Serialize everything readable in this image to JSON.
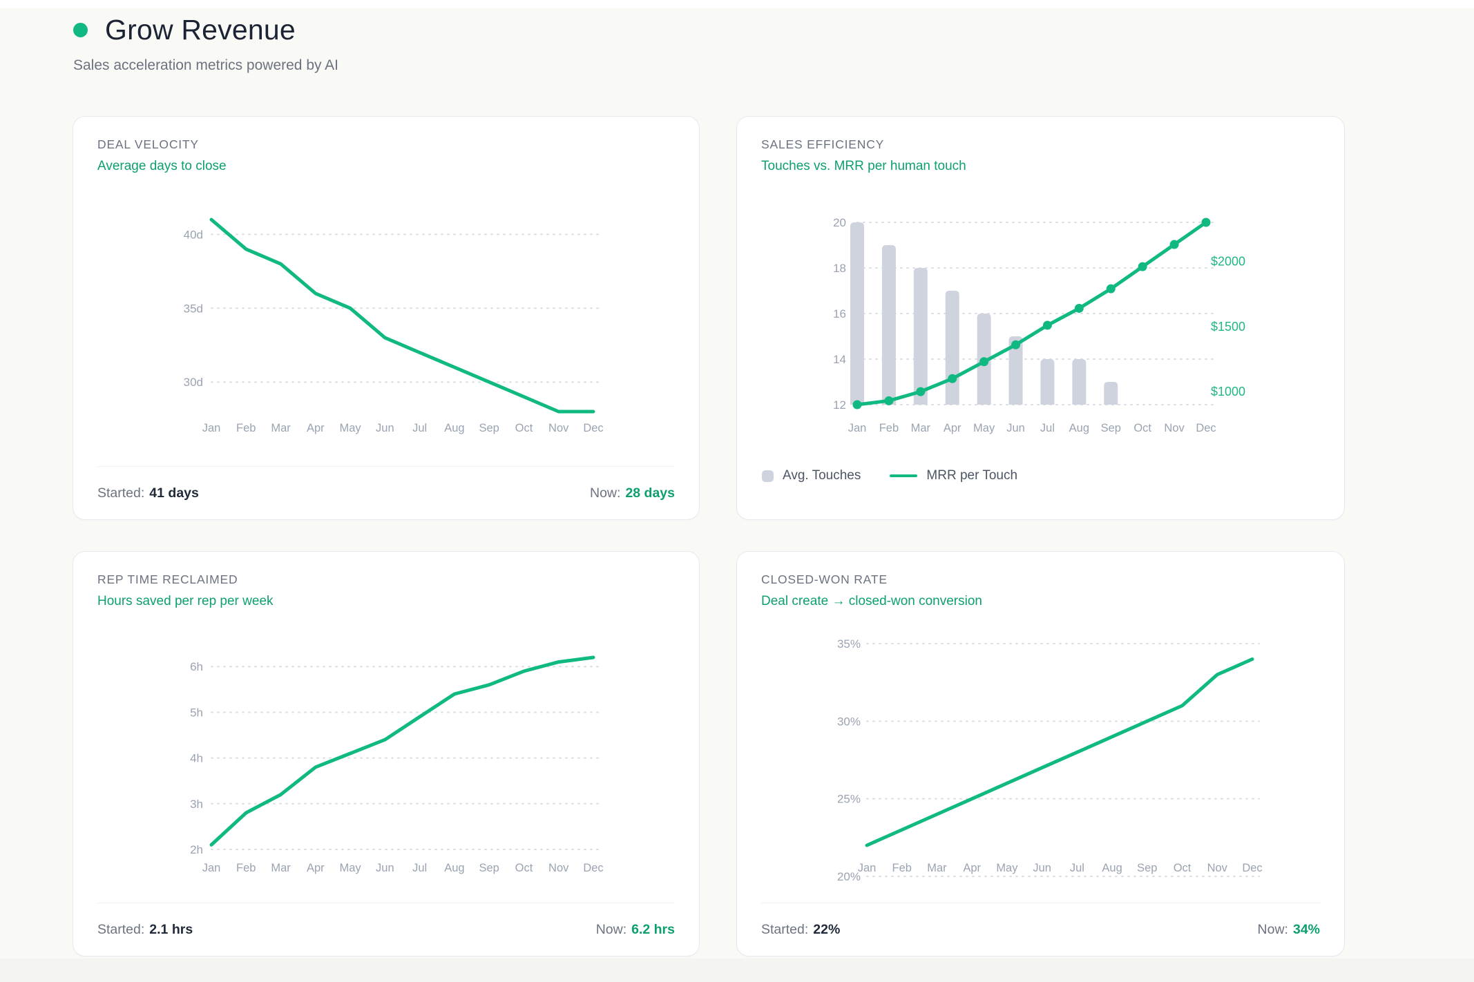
{
  "page": {
    "title": "Grow Revenue",
    "subtitle": "Sales acceleration metrics powered by AI"
  },
  "colors": {
    "accent_green": "#10b981",
    "text_green": "#0d9f6e",
    "right_axis_green": "#22b586",
    "bar_fill": "#ced3dd",
    "gridline": "#dadde3",
    "axis_text": "#9aa3b2",
    "dark_value_text": "#1f2937",
    "muted_text": "#6b7280",
    "card_background": "#ffffff",
    "page_background": "#f9f9f6"
  },
  "cards": [
    {
      "title": "DEAL VELOCITY",
      "subtitle": "Average days to close",
      "footer": {
        "started_label": "Started:",
        "started_value": "41 days",
        "now_label": "Now:",
        "now_value": "28 days"
      }
    },
    {
      "title": "SALES EFFICIENCY",
      "subtitle": "Touches vs. MRR per human touch",
      "legend": [
        {
          "label": "Avg. Touches",
          "swatch": "bar"
        },
        {
          "label": "MRR per Touch",
          "swatch": "line"
        }
      ]
    },
    {
      "title": "REP TIME RECLAIMED",
      "subtitle": "Hours saved per rep per week",
      "footer": {
        "started_label": "Started:",
        "started_value": "2.1 hrs",
        "now_label": "Now:",
        "now_value": "6.2 hrs"
      }
    },
    {
      "title": "CLOSED-WON RATE",
      "subtitle": "Deal create → closed-won conversion",
      "footer": {
        "started_label": "Started:",
        "started_value": "22%",
        "now_label": "Now:",
        "now_value": "34%"
      }
    }
  ],
  "chart_data": [
    {
      "type": "line",
      "title": "Deal Velocity — Average days to close",
      "x": [
        "Jan",
        "Feb",
        "Mar",
        "Apr",
        "May",
        "Jun",
        "Jul",
        "Aug",
        "Sep",
        "Oct",
        "Nov",
        "Dec"
      ],
      "series": [
        {
          "name": "Avg days to close",
          "values": [
            41,
            39,
            38,
            36,
            35,
            33,
            32,
            31,
            30,
            29,
            28,
            28
          ]
        }
      ],
      "ylim": [
        28,
        41
      ],
      "yticks": [
        {
          "v": 30,
          "label": "30d"
        },
        {
          "v": 35,
          "label": "35d"
        },
        {
          "v": 40,
          "label": "40d"
        }
      ],
      "grid": "dotted",
      "legend_position": "none"
    },
    {
      "type": "bar+line",
      "title": "Sales Efficiency — Touches vs. MRR per human touch",
      "x": [
        "Jan",
        "Feb",
        "Mar",
        "Apr",
        "May",
        "Jun",
        "Jul",
        "Aug",
        "Sep",
        "Oct",
        "Nov",
        "Dec"
      ],
      "series": [
        {
          "name": "Avg. Touches",
          "type": "bar",
          "axis": "left",
          "values": [
            20,
            19,
            18,
            17,
            16,
            15,
            14,
            14,
            13,
            12,
            12,
            12
          ]
        },
        {
          "name": "MRR per Touch",
          "type": "line",
          "axis": "right",
          "values": [
            900,
            930,
            1000,
            1100,
            1230,
            1360,
            1510,
            1640,
            1790,
            1960,
            2130,
            2300
          ]
        }
      ],
      "left_ylim": [
        12,
        20
      ],
      "left_yticks": [
        {
          "v": 12,
          "label": "12"
        },
        {
          "v": 14,
          "label": "14"
        },
        {
          "v": 16,
          "label": "16"
        },
        {
          "v": 18,
          "label": "18"
        },
        {
          "v": 20,
          "label": "20"
        }
      ],
      "right_ylim": [
        900,
        2300
      ],
      "right_yticks": [
        {
          "v": 1000,
          "label": "$1000"
        },
        {
          "v": 1500,
          "label": "$1500"
        },
        {
          "v": 2000,
          "label": "$2000"
        }
      ],
      "grid": "dotted",
      "legend_position": "bottom"
    },
    {
      "type": "line",
      "title": "Rep Time Reclaimed — Hours saved per rep per week",
      "x": [
        "Jan",
        "Feb",
        "Mar",
        "Apr",
        "May",
        "Jun",
        "Jul",
        "Aug",
        "Sep",
        "Oct",
        "Nov",
        "Dec"
      ],
      "series": [
        {
          "name": "Hours saved",
          "values": [
            2.1,
            2.8,
            3.2,
            3.8,
            4.1,
            4.4,
            4.9,
            5.4,
            5.6,
            5.9,
            6.1,
            6.2
          ]
        }
      ],
      "ylim": [
        2,
        6.2
      ],
      "yticks": [
        {
          "v": 2,
          "label": "2h"
        },
        {
          "v": 3,
          "label": "3h"
        },
        {
          "v": 4,
          "label": "4h"
        },
        {
          "v": 5,
          "label": "5h"
        },
        {
          "v": 6,
          "label": "6h"
        }
      ],
      "grid": "dotted",
      "legend_position": "none"
    },
    {
      "type": "line",
      "title": "Closed-Won Rate — Deal create to closed-won conversion",
      "x": [
        "Jan",
        "Feb",
        "Mar",
        "Apr",
        "May",
        "Jun",
        "Jul",
        "Aug",
        "Sep",
        "Oct",
        "Nov",
        "Dec"
      ],
      "series": [
        {
          "name": "Closed-won rate",
          "values": [
            22,
            23,
            24,
            25,
            26,
            27,
            28,
            29,
            30,
            31,
            33,
            34
          ]
        }
      ],
      "ylim": [
        20,
        35
      ],
      "yticks": [
        {
          "v": 20,
          "label": "20%"
        },
        {
          "v": 25,
          "label": "25%"
        },
        {
          "v": 30,
          "label": "30%"
        },
        {
          "v": 35,
          "label": "35%"
        }
      ],
      "grid": "dotted",
      "legend_position": "none"
    }
  ]
}
